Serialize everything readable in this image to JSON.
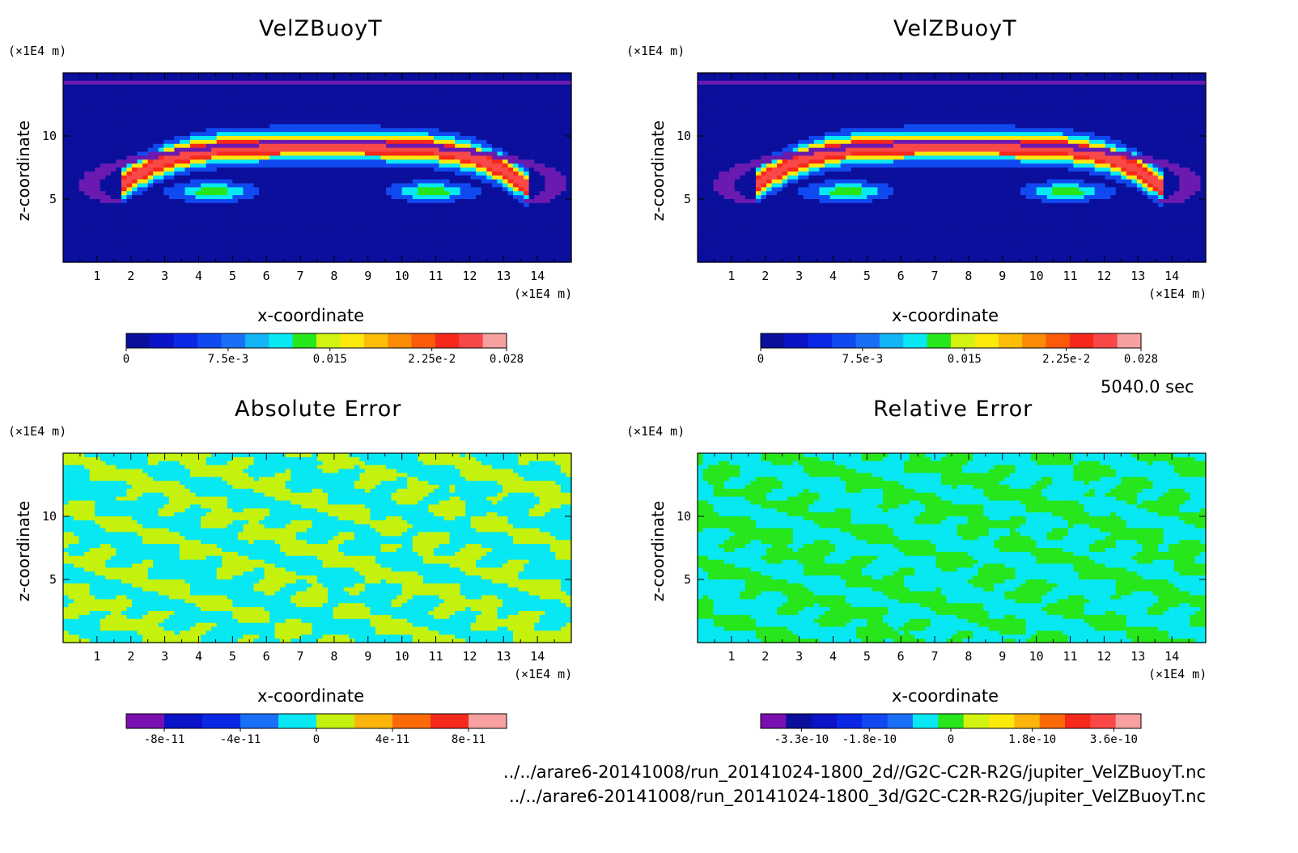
{
  "chart_data": [
    {
      "type": "heatmap",
      "title": "VelZBuoyT",
      "xlabel": "x-coordinate",
      "ylabel": "z-coordinate",
      "x_unit": "(×1E4 m)",
      "y_unit": "(×1E4 m)",
      "x_ticks": [
        1,
        2,
        3,
        4,
        5,
        6,
        7,
        8,
        9,
        10,
        11,
        12,
        13,
        14
      ],
      "y_ticks": [
        5,
        10
      ],
      "xlim": [
        0,
        15
      ],
      "ylim": [
        0,
        15
      ],
      "field": "thermal",
      "colorbar": {
        "colors": [
          "#0b0f9c",
          "#0b13c8",
          "#0b27e6",
          "#1049f0",
          "#1a6ff7",
          "#12b4f5",
          "#07e8f3",
          "#27e61c",
          "#d2f210",
          "#fbe90a",
          "#fbbd08",
          "#fb8a06",
          "#fb5a0a",
          "#f7281c",
          "#f84848",
          "#f6a0a0"
        ],
        "tick_labels": [
          "0",
          "7.5e-3",
          "0.015",
          "2.25e-2",
          "0.028"
        ],
        "tick_values": [
          0,
          0.0075,
          0.015,
          0.0225,
          0.028
        ],
        "range": [
          0,
          0.028
        ]
      }
    },
    {
      "type": "heatmap",
      "title": "VelZBuoyT",
      "xlabel": "x-coordinate",
      "ylabel": "z-coordinate",
      "x_unit": "(×1E4 m)",
      "y_unit": "(×1E4 m)",
      "x_ticks": [
        1,
        2,
        3,
        4,
        5,
        6,
        7,
        8,
        9,
        10,
        11,
        12,
        13,
        14
      ],
      "y_ticks": [
        5,
        10
      ],
      "xlim": [
        0,
        15
      ],
      "ylim": [
        0,
        15
      ],
      "field": "thermal",
      "colorbar": {
        "colors": [
          "#0b0f9c",
          "#0b13c8",
          "#0b27e6",
          "#1049f0",
          "#1a6ff7",
          "#12b4f5",
          "#07e8f3",
          "#27e61c",
          "#d2f210",
          "#fbe90a",
          "#fbbd08",
          "#fb8a06",
          "#fb5a0a",
          "#f7281c",
          "#f84848",
          "#f6a0a0"
        ],
        "tick_labels": [
          "0",
          "7.5e-3",
          "0.015",
          "2.25e-2",
          "0.028"
        ],
        "tick_values": [
          0,
          0.0075,
          0.015,
          0.0225,
          0.028
        ],
        "range": [
          0,
          0.028
        ]
      }
    },
    {
      "type": "heatmap",
      "title": "Absolute Error",
      "xlabel": "x-coordinate",
      "ylabel": "z-coordinate",
      "x_unit": "(×1E4 m)",
      "y_unit": "(×1E4 m)",
      "x_ticks": [
        1,
        2,
        3,
        4,
        5,
        6,
        7,
        8,
        9,
        10,
        11,
        12,
        13,
        14
      ],
      "y_ticks": [
        5,
        10
      ],
      "xlim": [
        0,
        15
      ],
      "ylim": [
        0,
        15
      ],
      "field": "abs_error",
      "colorbar": {
        "colors": [
          "#7a10b0",
          "#0b13c8",
          "#0b27e6",
          "#1a6ff7",
          "#07e8f3",
          "#c4f20c",
          "#fbb40a",
          "#fb6a08",
          "#f7281c",
          "#f6a0a0"
        ],
        "tick_labels": [
          "-8e-11",
          "-4e-11",
          "0",
          "4e-11",
          "8e-11"
        ],
        "tick_values": [
          -8e-11,
          -4e-11,
          0,
          4e-11,
          8e-11
        ],
        "range": [
          -1e-10,
          1e-10
        ]
      }
    },
    {
      "type": "heatmap",
      "title": "Relative Error",
      "xlabel": "x-coordinate",
      "ylabel": "z-coordinate",
      "x_unit": "(×1E4 m)",
      "y_unit": "(×1E4 m)",
      "x_ticks": [
        1,
        2,
        3,
        4,
        5,
        6,
        7,
        8,
        9,
        10,
        11,
        12,
        13,
        14
      ],
      "y_ticks": [
        5,
        10
      ],
      "xlim": [
        0,
        15
      ],
      "ylim": [
        0,
        15
      ],
      "field": "rel_error",
      "colorbar": {
        "colors": [
          "#7a10b0",
          "#0b0f9c",
          "#0b13c8",
          "#0b27e6",
          "#1049f0",
          "#1a6ff7",
          "#07e8f3",
          "#27e61c",
          "#d2f210",
          "#fbe90a",
          "#fbb40a",
          "#fb6a08",
          "#f7281c",
          "#f84848",
          "#f6a0a0"
        ],
        "tick_labels": [
          "-3.3e-10",
          "-1.8e-10",
          "0",
          "1.8e-10",
          "3.6e-10"
        ],
        "tick_values": [
          -3.3e-10,
          -1.8e-10,
          0,
          1.8e-10,
          3.6e-10
        ],
        "range": [
          -4.2e-10,
          4.2e-10
        ]
      }
    }
  ],
  "time_label": "5040.0 sec",
  "file_paths": [
    "../../arare6-20141008/run_20141024-1800_2d//G2C-C2R-R2G/jupiter_VelZBuoyT.nc",
    "../../arare6-20141008/run_20141024-1800_3d/G2C-C2R-R2G/jupiter_VelZBuoyT.nc"
  ]
}
